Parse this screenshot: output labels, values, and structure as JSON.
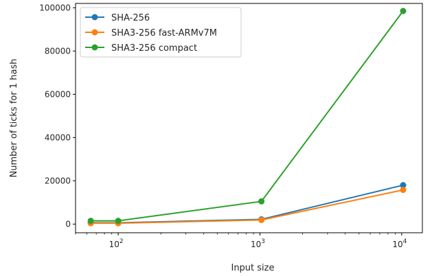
{
  "chart_data": {
    "type": "line",
    "title": "",
    "xlabel": "Input size",
    "ylabel": "Number of ticks for 1 hash",
    "xscale": "log",
    "xlim": [
      50,
      14000
    ],
    "ylim": [
      -4000,
      102000
    ],
    "x": [
      64,
      100,
      1024,
      10240
    ],
    "y_ticks": [
      0,
      20000,
      40000,
      60000,
      80000,
      100000
    ],
    "y_tick_labels": [
      "0",
      "20000",
      "40000",
      "60000",
      "80000",
      "100000"
    ],
    "x_ticks": [
      100,
      1000,
      10000
    ],
    "x_tick_labels": [
      {
        "base": "10",
        "exp": "2"
      },
      {
        "base": "10",
        "exp": "3"
      },
      {
        "base": "10",
        "exp": "4"
      }
    ],
    "grid": false,
    "legend": "top-left",
    "series": [
      {
        "name": "SHA-256",
        "color": "#1f77b4",
        "values": [
          600,
          600,
          2200,
          18000
        ]
      },
      {
        "name": "SHA3-256 fast-ARMv7M",
        "color": "#ff7f0e",
        "values": [
          400,
          400,
          1900,
          15800
        ]
      },
      {
        "name": "SHA3-256 compact",
        "color": "#2ca02c",
        "values": [
          1500,
          1500,
          10500,
          98500
        ]
      }
    ]
  }
}
